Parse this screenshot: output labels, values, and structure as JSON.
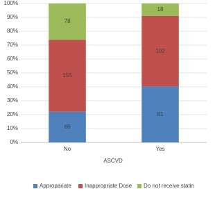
{
  "chart_data": {
    "type": "bar",
    "stacking": "percent",
    "x_label": "ASCVD",
    "categories": [
      "No",
      "Yes"
    ],
    "series": [
      {
        "name": "Appropariate",
        "color": "#4f81bd",
        "values": [
          66,
          81
        ]
      },
      {
        "name": "Inappropriate Dose",
        "color": "#c0504d",
        "values": [
          155,
          102
        ]
      },
      {
        "name": "Do not receive statin",
        "color": "#9bbb59",
        "values": [
          78,
          18
        ]
      }
    ],
    "ylim": [
      0,
      100
    ],
    "yticks": [
      {
        "value": 0,
        "label": "0%"
      },
      {
        "value": 10,
        "label": "10%"
      },
      {
        "value": 20,
        "label": "20%"
      },
      {
        "value": 30,
        "label": "30%"
      },
      {
        "value": 40,
        "label": "40%"
      },
      {
        "value": 50,
        "label": "50%"
      },
      {
        "value": 60,
        "label": "60%"
      },
      {
        "value": 70,
        "label": "70%"
      },
      {
        "value": 80,
        "label": "80%"
      },
      {
        "value": 90,
        "label": "90%"
      },
      {
        "value": 100,
        "label": "100%"
      }
    ],
    "grid": true,
    "legend": "bottom"
  }
}
